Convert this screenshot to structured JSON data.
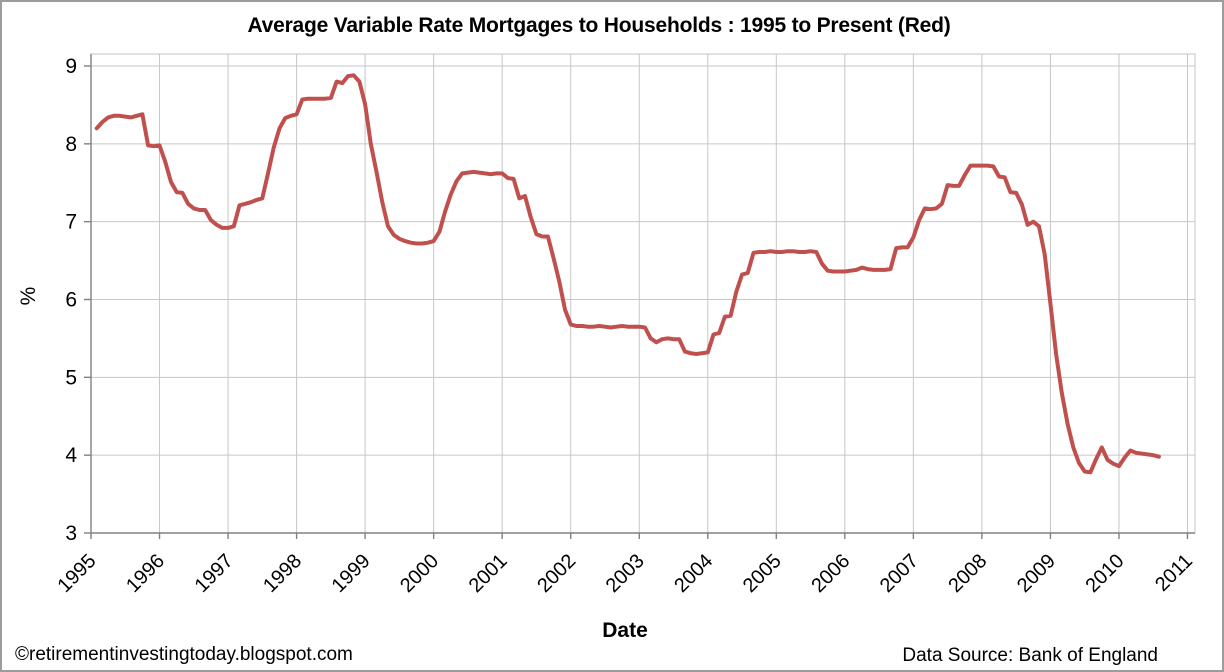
{
  "chart_data": {
    "type": "line",
    "title": "Average Variable Rate Mortgages to Households : 1995 to Present (Red)",
    "xlabel": "Date",
    "ylabel": "%",
    "ylim": [
      3,
      9
    ],
    "yticks": [
      9,
      8,
      7,
      6,
      5,
      4,
      3
    ],
    "xticks": [
      1995,
      1996,
      1997,
      1998,
      1999,
      2000,
      2001,
      2002,
      2003,
      2004,
      2005,
      2006,
      2007,
      2008,
      2009,
      2010,
      2011
    ],
    "grid": "both",
    "legend": "none",
    "series": [
      {
        "name": "Average variable rate mortgage rate (Red)",
        "color": "#C0504D",
        "start": "1995-02",
        "frequency": "monthly",
        "values": [
          8.2,
          8.28,
          8.34,
          8.36,
          8.36,
          8.35,
          8.34,
          8.36,
          8.38,
          7.98,
          7.97,
          7.98,
          7.77,
          7.51,
          7.38,
          7.37,
          7.23,
          7.17,
          7.15,
          7.15,
          7.02,
          6.96,
          6.92,
          6.92,
          6.94,
          7.21,
          7.23,
          7.25,
          7.28,
          7.3,
          7.62,
          7.95,
          8.2,
          8.33,
          8.36,
          8.38,
          8.57,
          8.58,
          8.58,
          8.58,
          8.58,
          8.59,
          8.8,
          8.78,
          8.87,
          8.88,
          8.8,
          8.51,
          8.0,
          7.64,
          7.25,
          6.94,
          6.83,
          6.78,
          6.75,
          6.73,
          6.72,
          6.72,
          6.73,
          6.75,
          6.87,
          7.13,
          7.35,
          7.52,
          7.62,
          7.63,
          7.64,
          7.63,
          7.62,
          7.61,
          7.62,
          7.62,
          7.56,
          7.55,
          7.3,
          7.33,
          7.06,
          6.84,
          6.81,
          6.81,
          6.53,
          6.23,
          5.87,
          5.68,
          5.66,
          5.66,
          5.65,
          5.65,
          5.66,
          5.65,
          5.64,
          5.65,
          5.66,
          5.65,
          5.65,
          5.65,
          5.64,
          5.5,
          5.45,
          5.49,
          5.5,
          5.49,
          5.49,
          5.33,
          5.31,
          5.3,
          5.31,
          5.32,
          5.55,
          5.57,
          5.78,
          5.79,
          6.1,
          6.32,
          6.34,
          6.6,
          6.61,
          6.61,
          6.62,
          6.61,
          6.61,
          6.62,
          6.62,
          6.61,
          6.61,
          6.62,
          6.61,
          6.46,
          6.37,
          6.36,
          6.36,
          6.36,
          6.37,
          6.38,
          6.41,
          6.39,
          6.38,
          6.38,
          6.38,
          6.39,
          6.66,
          6.67,
          6.67,
          6.8,
          7.02,
          7.17,
          7.16,
          7.17,
          7.23,
          7.47,
          7.46,
          7.46,
          7.6,
          7.72,
          7.72,
          7.72,
          7.72,
          7.71,
          7.58,
          7.57,
          7.38,
          7.37,
          7.22,
          6.96,
          7.0,
          6.94,
          6.58,
          5.95,
          5.3,
          4.8,
          4.4,
          4.1,
          3.9,
          3.79,
          3.78,
          3.95,
          4.1,
          3.94,
          3.89,
          3.86,
          3.97,
          4.06,
          4.03,
          4.02,
          4.01,
          4.0,
          3.98
        ]
      }
    ]
  },
  "footer": {
    "watermark": "©retirementinvestingtoday.blogspot.com",
    "data_source": "Data Source: Bank of England"
  }
}
